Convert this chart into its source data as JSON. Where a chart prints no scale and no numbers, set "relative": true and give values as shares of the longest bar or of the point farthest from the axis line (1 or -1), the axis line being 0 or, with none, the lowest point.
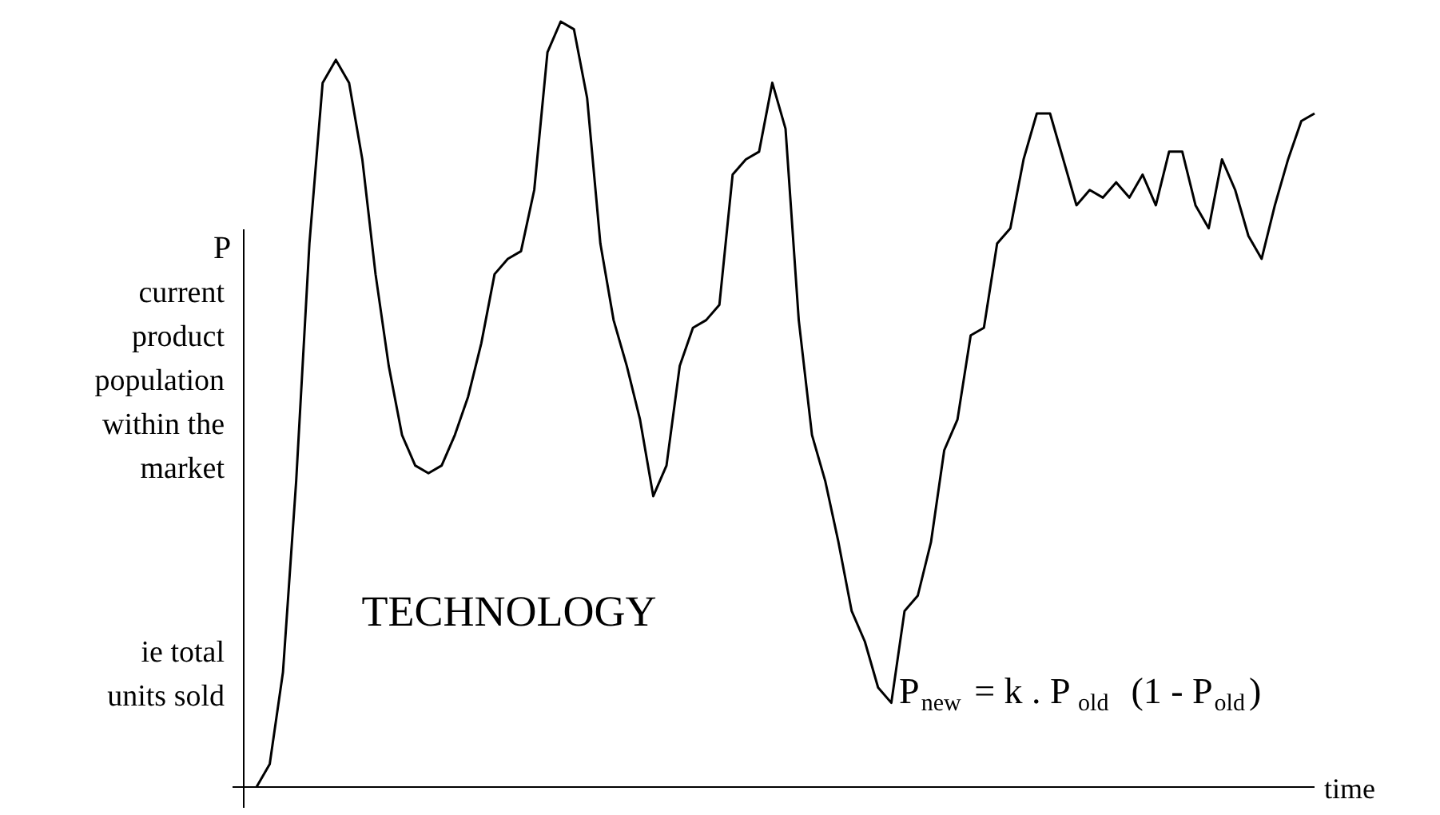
{
  "chart_data": {
    "type": "line",
    "relative": true,
    "color": "#000000",
    "xlabel": "time",
    "ylabel": "P",
    "annotations": [
      "current product population within the market",
      "ie total units sold",
      "TECHNOLOGY",
      "P$_{new}$ = k . P$_{old}$ (1 - P$_{old}$)"
    ],
    "categories": [
      null,
      null,
      null,
      null,
      null,
      null,
      null,
      null,
      null,
      null,
      null,
      null,
      null,
      null,
      null,
      null,
      null,
      null,
      null,
      null,
      null,
      null,
      null,
      null,
      null,
      null,
      null,
      null,
      null,
      null,
      null,
      null,
      null,
      null,
      null,
      null,
      null,
      null,
      null,
      null,
      null,
      null,
      null,
      null,
      null,
      null,
      null,
      null,
      null,
      null,
      null,
      null,
      null,
      null,
      null,
      null,
      null,
      null,
      null,
      null,
      null,
      null,
      null,
      null,
      null,
      null,
      null,
      null,
      null,
      null,
      null,
      null,
      null,
      null,
      null,
      null,
      null,
      null,
      null,
      null,
      null
    ],
    "values": [
      0,
      0.03,
      0.15,
      0.4,
      0.71,
      0.92,
      0.95,
      0.92,
      0.82,
      0.67,
      0.55,
      0.46,
      0.42,
      0.41,
      0.42,
      0.46,
      0.51,
      0.58,
      0.67,
      0.69,
      0.7,
      0.78,
      0.96,
      1,
      0.99,
      0.9,
      0.71,
      0.61,
      0.55,
      0.48,
      0.38,
      0.42,
      0.55,
      0.6,
      0.61,
      0.63,
      0.8,
      0.82,
      0.83,
      0.92,
      0.86,
      0.61,
      0.46,
      0.4,
      0.32,
      0.23,
      0.19,
      0.13,
      0.11,
      0.23,
      0.25,
      0.32,
      0.44,
      0.48,
      0.59,
      0.6,
      0.71,
      0.73,
      0.82,
      0.88,
      0.88,
      0.82,
      0.76,
      0.78,
      0.77,
      0.79,
      0.77,
      0.8,
      0.76,
      0.83,
      0.83,
      0.76,
      0.73,
      0.82,
      0.78,
      0.72,
      0.69,
      0.76,
      0.82,
      0.87,
      0.88
    ]
  }
}
